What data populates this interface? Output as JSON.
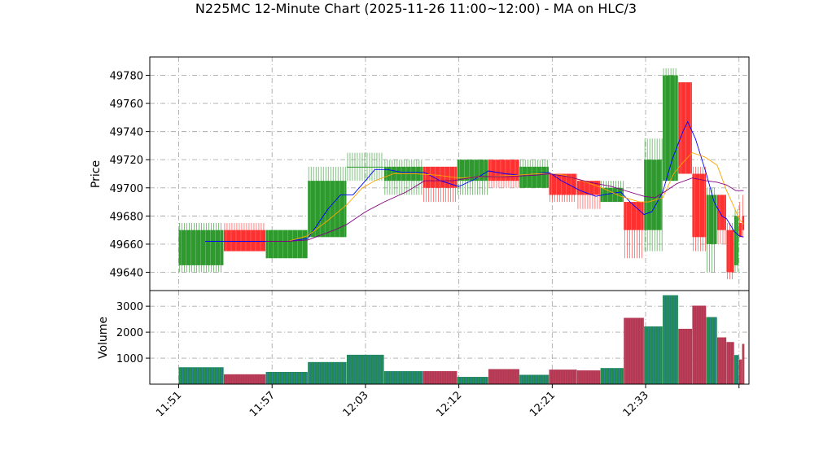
{
  "chart_data": {
    "type": "candlestick",
    "title": "N225MC 12-Minute Chart (2025-11-26 11:00~12:00) - MA on HLC/3",
    "price_panel": {
      "ylabel": "Price",
      "ylim": [
        49627,
        49793
      ],
      "yticks": [
        49640,
        49660,
        49680,
        49700,
        49720,
        49740,
        49760,
        49780
      ],
      "grid": true
    },
    "volume_panel": {
      "ylabel": "Volume",
      "ylim": [
        0,
        3600
      ],
      "yticks": [
        1000,
        2000,
        3000
      ],
      "grid": true
    },
    "xlim": [
      0,
      18.32
    ],
    "x_ticks": [
      {
        "pos": 0,
        "label": "11:51"
      },
      {
        "pos": 3,
        "label": "11:57"
      },
      {
        "pos": 6,
        "label": "12:03"
      },
      {
        "pos": 9,
        "label": "12:12"
      },
      {
        "pos": 12,
        "label": "12:21"
      },
      {
        "pos": 15,
        "label": "12:33"
      },
      {
        "pos": 18,
        "label": ""
      }
    ],
    "candles": [
      {
        "x0": 0.0,
        "x1": 1.45,
        "open": 49645,
        "high": 49675,
        "low": 49640,
        "close": 49670,
        "volume": 650
      },
      {
        "x0": 1.45,
        "x1": 2.8,
        "open": 49670,
        "high": 49675,
        "low": 49655,
        "close": 49655,
        "volume": 380
      },
      {
        "x0": 2.8,
        "x1": 4.15,
        "open": 49650,
        "high": 49670,
        "low": 49650,
        "close": 49670,
        "volume": 470
      },
      {
        "x0": 4.15,
        "x1": 5.4,
        "open": 49665,
        "high": 49715,
        "low": 49665,
        "close": 49705,
        "volume": 850
      },
      {
        "x0": 5.4,
        "x1": 6.6,
        "open": 49715,
        "high": 49725,
        "low": 49705,
        "close": 49715,
        "volume": 1130
      },
      {
        "x0": 6.6,
        "x1": 7.85,
        "open": 49705,
        "high": 49720,
        "low": 49695,
        "close": 49715,
        "volume": 500
      },
      {
        "x0": 7.85,
        "x1": 8.95,
        "open": 49715,
        "high": 49715,
        "low": 49690,
        "close": 49700,
        "volume": 500
      },
      {
        "x0": 8.95,
        "x1": 9.95,
        "open": 49705,
        "high": 49720,
        "low": 49695,
        "close": 49720,
        "volume": 280
      },
      {
        "x0": 9.95,
        "x1": 10.95,
        "open": 49720,
        "high": 49720,
        "low": 49700,
        "close": 49705,
        "volume": 580
      },
      {
        "x0": 10.95,
        "x1": 11.9,
        "open": 49700,
        "high": 49720,
        "low": 49700,
        "close": 49715,
        "volume": 360
      },
      {
        "x0": 11.9,
        "x1": 12.8,
        "open": 49710,
        "high": 49710,
        "low": 49690,
        "close": 49695,
        "volume": 560
      },
      {
        "x0": 12.8,
        "x1": 13.55,
        "open": 49705,
        "high": 49705,
        "low": 49685,
        "close": 49695,
        "volume": 530
      },
      {
        "x0": 13.55,
        "x1": 14.3,
        "open": 49690,
        "high": 49705,
        "low": 49690,
        "close": 49700,
        "volume": 620
      },
      {
        "x0": 14.3,
        "x1": 14.95,
        "open": 49690,
        "high": 49690,
        "low": 49650,
        "close": 49670,
        "volume": 2550
      },
      {
        "x0": 14.95,
        "x1": 15.55,
        "open": 49670,
        "high": 49735,
        "low": 49655,
        "close": 49720,
        "volume": 2220
      },
      {
        "x0": 15.55,
        "x1": 16.05,
        "open": 49705,
        "high": 49785,
        "low": 49705,
        "close": 49780,
        "volume": 3420
      },
      {
        "x0": 16.05,
        "x1": 16.5,
        "open": 49775,
        "high": 49775,
        "low": 49710,
        "close": 49710,
        "volume": 2130
      },
      {
        "x0": 16.5,
        "x1": 16.95,
        "open": 49710,
        "high": 49715,
        "low": 49655,
        "close": 49665,
        "volume": 3020
      },
      {
        "x0": 16.95,
        "x1": 17.3,
        "open": 49660,
        "high": 49700,
        "low": 49640,
        "close": 49695,
        "volume": 2580
      },
      {
        "x0": 17.3,
        "x1": 17.6,
        "open": 49695,
        "high": 49695,
        "low": 49660,
        "close": 49670,
        "volume": 1800
      },
      {
        "x0": 17.6,
        "x1": 17.85,
        "open": 49670,
        "high": 49675,
        "low": 49635,
        "close": 49640,
        "volume": 1620
      },
      {
        "x0": 17.85,
        "x1": 18.0,
        "open": 49645,
        "high": 49685,
        "low": 49640,
        "close": 49680,
        "volume": 1120
      },
      {
        "x0": 18.0,
        "x1": 18.1,
        "open": 49675,
        "high": 49690,
        "low": 49665,
        "close": 49665,
        "volume": 950
      },
      {
        "x0": 18.1,
        "x1": 18.18,
        "open": 49680,
        "high": 49695,
        "low": 49665,
        "close": 49670,
        "volume": 1550
      }
    ],
    "ma_lines": [
      {
        "color": "#0000ff",
        "points": [
          [
            0.85,
            49662
          ],
          [
            2.2,
            49662
          ],
          [
            3.5,
            49662
          ],
          [
            4.15,
            49664
          ],
          [
            4.8,
            49685
          ],
          [
            5.2,
            49695
          ],
          [
            5.6,
            49695
          ],
          [
            6.0,
            49705
          ],
          [
            6.3,
            49713
          ],
          [
            6.7,
            49713
          ],
          [
            7.2,
            49711
          ],
          [
            7.9,
            49711
          ],
          [
            8.4,
            49705
          ],
          [
            9.0,
            49701
          ],
          [
            9.5,
            49706
          ],
          [
            9.95,
            49712
          ],
          [
            10.5,
            49710
          ],
          [
            10.95,
            49709
          ],
          [
            11.5,
            49710
          ],
          [
            11.9,
            49711
          ],
          [
            12.3,
            49705
          ],
          [
            12.9,
            49698
          ],
          [
            13.4,
            49694
          ],
          [
            13.9,
            49696
          ],
          [
            14.2,
            49697
          ],
          [
            14.5,
            49690
          ],
          [
            14.95,
            49681
          ],
          [
            15.2,
            49683
          ],
          [
            15.55,
            49697
          ],
          [
            15.85,
            49720
          ],
          [
            16.2,
            49740
          ],
          [
            16.35,
            49747
          ],
          [
            16.6,
            49735
          ],
          [
            16.95,
            49710
          ],
          [
            17.2,
            49690
          ],
          [
            17.45,
            49680
          ],
          [
            17.6,
            49678
          ],
          [
            17.85,
            49669
          ],
          [
            18.0,
            49666
          ],
          [
            18.15,
            49665
          ]
        ]
      },
      {
        "color": "#ffa500",
        "points": [
          [
            2.8,
            49662
          ],
          [
            3.5,
            49662
          ],
          [
            4.15,
            49666
          ],
          [
            4.8,
            49677
          ],
          [
            5.4,
            49688
          ],
          [
            5.9,
            49700
          ],
          [
            6.3,
            49705
          ],
          [
            6.9,
            49710
          ],
          [
            7.6,
            49710
          ],
          [
            8.3,
            49709
          ],
          [
            9.0,
            49707
          ],
          [
            9.9,
            49708
          ],
          [
            10.9,
            49709
          ],
          [
            11.5,
            49710
          ],
          [
            11.9,
            49710
          ],
          [
            12.4,
            49709
          ],
          [
            13.1,
            49704
          ],
          [
            13.6,
            49700
          ],
          [
            14.2,
            49694
          ],
          [
            14.8,
            49690
          ],
          [
            15.1,
            49690
          ],
          [
            15.55,
            49693
          ],
          [
            15.9,
            49710
          ],
          [
            16.2,
            49718
          ],
          [
            16.5,
            49725
          ],
          [
            16.9,
            49722
          ],
          [
            17.3,
            49716
          ],
          [
            17.6,
            49698
          ],
          [
            17.85,
            49686
          ],
          [
            18.0,
            49678
          ],
          [
            18.15,
            49674
          ]
        ]
      },
      {
        "color": "#800080",
        "points": [
          [
            2.8,
            49662
          ],
          [
            3.5,
            49662
          ],
          [
            4.15,
            49663
          ],
          [
            5.0,
            49670
          ],
          [
            5.4,
            49674
          ],
          [
            6.0,
            49683
          ],
          [
            6.6,
            49690
          ],
          [
            7.3,
            49697
          ],
          [
            7.9,
            49705
          ],
          [
            8.8,
            49705
          ],
          [
            9.6,
            49708
          ],
          [
            10.6,
            49708
          ],
          [
            11.5,
            49709
          ],
          [
            11.9,
            49710
          ],
          [
            12.5,
            49708
          ],
          [
            13.2,
            49704
          ],
          [
            13.9,
            49701
          ],
          [
            14.5,
            49697
          ],
          [
            14.95,
            49694
          ],
          [
            15.3,
            49693
          ],
          [
            15.6,
            49697
          ],
          [
            16.0,
            49703
          ],
          [
            16.5,
            49707
          ],
          [
            16.95,
            49705
          ],
          [
            17.3,
            49704
          ],
          [
            17.6,
            49702
          ],
          [
            17.9,
            49698
          ],
          [
            18.15,
            49698
          ]
        ]
      }
    ]
  }
}
